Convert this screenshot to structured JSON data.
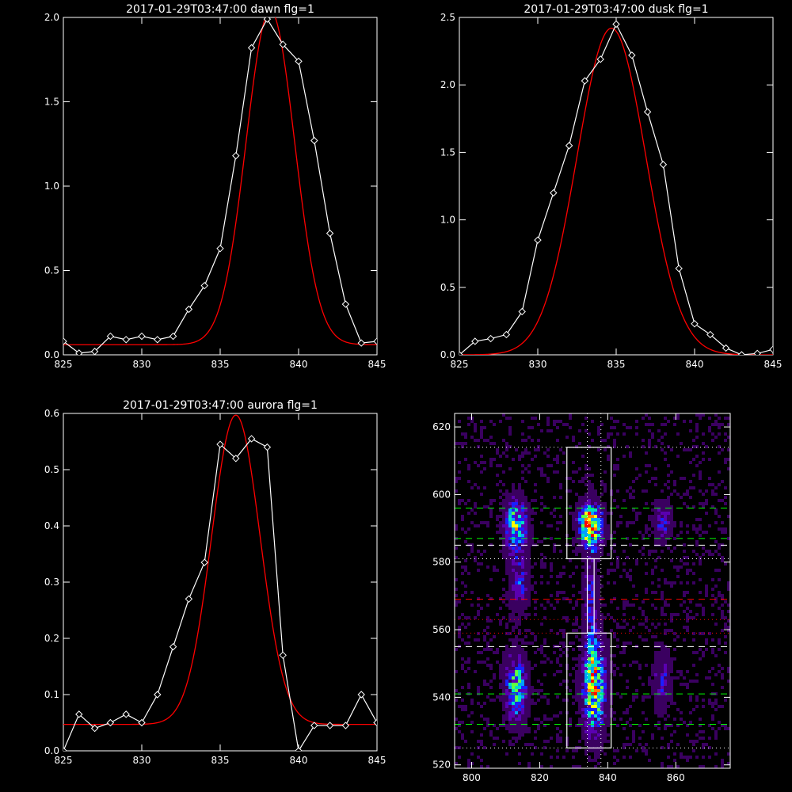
{
  "chart_data": [
    {
      "type": "line",
      "title": "2017-01-29T03:47:00 dawn flg=1",
      "xlim": [
        825,
        845
      ],
      "ylim": [
        0,
        2.0
      ],
      "xticks": [
        "825",
        "830",
        "835",
        "840",
        "845"
      ],
      "yticks": [
        "0.0",
        "0.5",
        "1.0",
        "1.5",
        "2.0"
      ],
      "xtick_values": [
        825,
        830,
        835,
        840,
        845
      ],
      "ytick_values": [
        0,
        0.5,
        1.0,
        1.5,
        2.0
      ],
      "series": [
        {
          "color": "#ffffff",
          "marker": "diamond",
          "x": [
            825,
            826,
            827,
            828,
            829,
            830,
            831,
            832,
            833,
            834,
            835,
            836,
            837,
            838,
            839,
            840,
            841,
            842,
            843,
            844,
            845
          ],
          "y": [
            0.08,
            0.01,
            0.02,
            0.11,
            0.09,
            0.11,
            0.09,
            0.11,
            0.27,
            0.41,
            0.63,
            1.18,
            1.82,
            1.99,
            1.84,
            1.74,
            1.27,
            0.72,
            0.3,
            0.07,
            0.08
          ]
        },
        {
          "color": "#ff0000",
          "fit": "gaussian",
          "amplitude": 1.98,
          "center": 838.2,
          "sigma": 1.55,
          "baseline": 0.06
        }
      ]
    },
    {
      "type": "line",
      "title": "2017-01-29T03:47:00 dusk flg=1",
      "xlim": [
        825,
        845
      ],
      "ylim": [
        0,
        2.5
      ],
      "xticks": [
        "825",
        "830",
        "835",
        "840",
        "845"
      ],
      "yticks": [
        "0.0",
        "0.5",
        "1.0",
        "1.5",
        "2.0",
        "2.5"
      ],
      "xtick_values": [
        825,
        830,
        835,
        840,
        845
      ],
      "ytick_values": [
        0,
        0.5,
        1.0,
        1.5,
        2.0,
        2.5
      ],
      "series": [
        {
          "color": "#ffffff",
          "marker": "diamond",
          "x": [
            825,
            826,
            827,
            828,
            829,
            830,
            831,
            832,
            833,
            834,
            835,
            836,
            837,
            838,
            839,
            840,
            841,
            842,
            843,
            844,
            845
          ],
          "y": [
            0.0,
            0.1,
            0.12,
            0.15,
            0.32,
            0.85,
            1.2,
            1.55,
            2.03,
            2.19,
            2.45,
            2.22,
            1.8,
            1.41,
            0.64,
            0.23,
            0.15,
            0.05,
            0.0,
            0.01,
            0.04
          ]
        },
        {
          "color": "#ff0000",
          "fit": "gaussian",
          "amplitude": 2.42,
          "center": 834.7,
          "sigma": 2.2,
          "baseline": 0.0
        }
      ]
    },
    {
      "type": "line",
      "title": "2017-01-29T03:47:00 aurora flg=1",
      "xlim": [
        825,
        845
      ],
      "ylim": [
        0,
        0.6
      ],
      "xticks": [
        "825",
        "830",
        "835",
        "840",
        "845"
      ],
      "yticks": [
        "0.0",
        "0.1",
        "0.2",
        "0.3",
        "0.4",
        "0.5",
        "0.6"
      ],
      "xtick_values": [
        825,
        830,
        835,
        840,
        845
      ],
      "ytick_values": [
        0,
        0.1,
        0.2,
        0.3,
        0.4,
        0.5,
        0.6
      ],
      "series": [
        {
          "color": "#ffffff",
          "marker": "diamond",
          "x": [
            825,
            826,
            827,
            828,
            829,
            830,
            831,
            832,
            833,
            834,
            835,
            836,
            837,
            838,
            839,
            840,
            841,
            842,
            843,
            844,
            845
          ],
          "y": [
            0.0,
            0.065,
            0.04,
            0.05,
            0.065,
            0.05,
            0.1,
            0.185,
            0.27,
            0.335,
            0.545,
            0.52,
            0.555,
            0.54,
            0.17,
            0.0,
            0.045,
            0.045,
            0.045,
            0.1,
            0.05
          ]
        },
        {
          "color": "#ff0000",
          "fit": "gaussian",
          "amplitude": 0.55,
          "center": 836.0,
          "sigma": 1.55,
          "baseline": 0.047
        }
      ]
    },
    {
      "type": "heatmap",
      "title": "",
      "xlim": [
        795,
        876
      ],
      "ylim": [
        519,
        624
      ],
      "xticks": [
        "800",
        "820",
        "840",
        "860"
      ],
      "yticks": [
        "520",
        "540",
        "560",
        "580",
        "600",
        "620"
      ],
      "xtick_values": [
        800,
        820,
        840,
        860
      ],
      "ytick_values": [
        520,
        540,
        560,
        580,
        600,
        620
      ],
      "colormap": [
        "#000000",
        "#3a0060",
        "#5a00b0",
        "#1a20ff",
        "#00a0ff",
        "#00e0c0",
        "#60ff40",
        "#ffff00",
        "#ff8000",
        "#ff0000"
      ],
      "sources": [
        {
          "x": 813,
          "y": 591,
          "sx": 2.2,
          "sy": 5,
          "amp": 0.7
        },
        {
          "x": 813,
          "y": 543,
          "sx": 2.2,
          "sy": 7,
          "amp": 0.6
        },
        {
          "x": 814,
          "y": 574,
          "sx": 2.0,
          "sy": 6,
          "amp": 0.35
        },
        {
          "x": 835,
          "y": 591,
          "sx": 2.3,
          "sy": 4,
          "amp": 1.0
        },
        {
          "x": 836,
          "y": 543,
          "sx": 2.3,
          "sy": 9,
          "amp": 0.8
        },
        {
          "x": 835,
          "y": 570,
          "sx": 1.5,
          "sy": 14,
          "amp": 0.3
        },
        {
          "x": 856,
          "y": 592,
          "sx": 1.8,
          "sy": 4,
          "amp": 0.35
        },
        {
          "x": 856,
          "y": 545,
          "sx": 1.8,
          "sy": 6,
          "amp": 0.3
        }
      ],
      "boxes": [
        {
          "x": [
            828,
            841
          ],
          "y": [
            581,
            614
          ]
        },
        {
          "x": [
            828,
            841
          ],
          "y": [
            525,
            559
          ]
        },
        {
          "x": [
            834,
            836
          ],
          "y": [
            559,
            581
          ]
        }
      ],
      "vlines": [
        {
          "x": 834,
          "color": "#ffffff",
          "style": "dotted"
        },
        {
          "x": 838,
          "color": "#ffffff",
          "style": "dotted"
        }
      ],
      "hlines": [
        {
          "y": 614,
          "color": "#ffffff",
          "style": "dotted"
        },
        {
          "y": 596,
          "color": "#00ff00",
          "style": "dashed"
        },
        {
          "y": 587,
          "color": "#00ff00",
          "style": "dashed"
        },
        {
          "y": 585,
          "color": "#ffffff",
          "style": "dashed"
        },
        {
          "y": 581,
          "color": "#ffffff",
          "style": "dotted"
        },
        {
          "y": 569,
          "color": "#ff0000",
          "style": "dashed"
        },
        {
          "y": 563,
          "color": "#ff0000",
          "style": "dotted"
        },
        {
          "y": 559,
          "color": "#ff0000",
          "style": "dotted"
        },
        {
          "y": 555,
          "color": "#ffffff",
          "style": "dashed"
        },
        {
          "y": 541,
          "color": "#00ff00",
          "style": "dashed"
        },
        {
          "y": 532,
          "color": "#00ff00",
          "style": "dashed"
        },
        {
          "y": 525,
          "color": "#ffffff",
          "style": "dotted"
        }
      ]
    }
  ]
}
